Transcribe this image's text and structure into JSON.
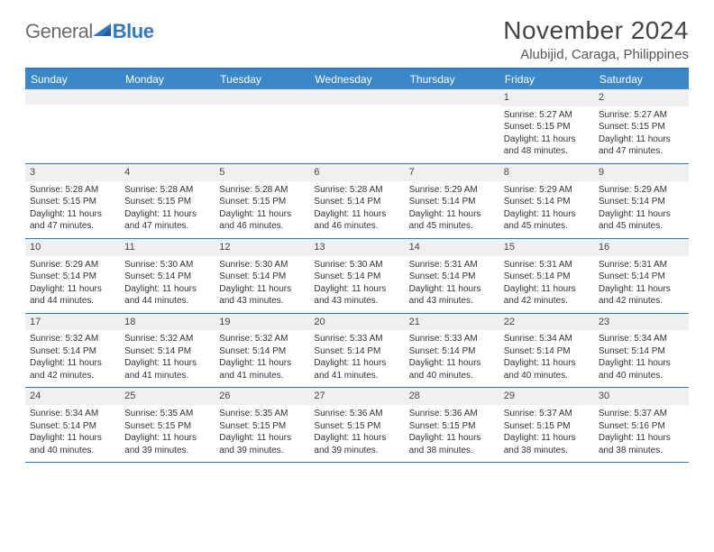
{
  "logo": {
    "text1": "General",
    "text2": "Blue"
  },
  "title": "November 2024",
  "location": "Alubijid, Caraga, Philippines",
  "colors": {
    "header_bg": "#3b87c8",
    "border": "#2f78bf",
    "daynum_bg": "#eef0f2",
    "text": "#333333",
    "logo_gray": "#6b6b6b",
    "logo_blue": "#2f78bf"
  },
  "day_names": [
    "Sunday",
    "Monday",
    "Tuesday",
    "Wednesday",
    "Thursday",
    "Friday",
    "Saturday"
  ],
  "weeks": [
    [
      {
        "n": "",
        "sr": "",
        "ss": "",
        "dl": ""
      },
      {
        "n": "",
        "sr": "",
        "ss": "",
        "dl": ""
      },
      {
        "n": "",
        "sr": "",
        "ss": "",
        "dl": ""
      },
      {
        "n": "",
        "sr": "",
        "ss": "",
        "dl": ""
      },
      {
        "n": "",
        "sr": "",
        "ss": "",
        "dl": ""
      },
      {
        "n": "1",
        "sr": "Sunrise: 5:27 AM",
        "ss": "Sunset: 5:15 PM",
        "dl": "Daylight: 11 hours and 48 minutes."
      },
      {
        "n": "2",
        "sr": "Sunrise: 5:27 AM",
        "ss": "Sunset: 5:15 PM",
        "dl": "Daylight: 11 hours and 47 minutes."
      }
    ],
    [
      {
        "n": "3",
        "sr": "Sunrise: 5:28 AM",
        "ss": "Sunset: 5:15 PM",
        "dl": "Daylight: 11 hours and 47 minutes."
      },
      {
        "n": "4",
        "sr": "Sunrise: 5:28 AM",
        "ss": "Sunset: 5:15 PM",
        "dl": "Daylight: 11 hours and 47 minutes."
      },
      {
        "n": "5",
        "sr": "Sunrise: 5:28 AM",
        "ss": "Sunset: 5:15 PM",
        "dl": "Daylight: 11 hours and 46 minutes."
      },
      {
        "n": "6",
        "sr": "Sunrise: 5:28 AM",
        "ss": "Sunset: 5:14 PM",
        "dl": "Daylight: 11 hours and 46 minutes."
      },
      {
        "n": "7",
        "sr": "Sunrise: 5:29 AM",
        "ss": "Sunset: 5:14 PM",
        "dl": "Daylight: 11 hours and 45 minutes."
      },
      {
        "n": "8",
        "sr": "Sunrise: 5:29 AM",
        "ss": "Sunset: 5:14 PM",
        "dl": "Daylight: 11 hours and 45 minutes."
      },
      {
        "n": "9",
        "sr": "Sunrise: 5:29 AM",
        "ss": "Sunset: 5:14 PM",
        "dl": "Daylight: 11 hours and 45 minutes."
      }
    ],
    [
      {
        "n": "10",
        "sr": "Sunrise: 5:29 AM",
        "ss": "Sunset: 5:14 PM",
        "dl": "Daylight: 11 hours and 44 minutes."
      },
      {
        "n": "11",
        "sr": "Sunrise: 5:30 AM",
        "ss": "Sunset: 5:14 PM",
        "dl": "Daylight: 11 hours and 44 minutes."
      },
      {
        "n": "12",
        "sr": "Sunrise: 5:30 AM",
        "ss": "Sunset: 5:14 PM",
        "dl": "Daylight: 11 hours and 43 minutes."
      },
      {
        "n": "13",
        "sr": "Sunrise: 5:30 AM",
        "ss": "Sunset: 5:14 PM",
        "dl": "Daylight: 11 hours and 43 minutes."
      },
      {
        "n": "14",
        "sr": "Sunrise: 5:31 AM",
        "ss": "Sunset: 5:14 PM",
        "dl": "Daylight: 11 hours and 43 minutes."
      },
      {
        "n": "15",
        "sr": "Sunrise: 5:31 AM",
        "ss": "Sunset: 5:14 PM",
        "dl": "Daylight: 11 hours and 42 minutes."
      },
      {
        "n": "16",
        "sr": "Sunrise: 5:31 AM",
        "ss": "Sunset: 5:14 PM",
        "dl": "Daylight: 11 hours and 42 minutes."
      }
    ],
    [
      {
        "n": "17",
        "sr": "Sunrise: 5:32 AM",
        "ss": "Sunset: 5:14 PM",
        "dl": "Daylight: 11 hours and 42 minutes."
      },
      {
        "n": "18",
        "sr": "Sunrise: 5:32 AM",
        "ss": "Sunset: 5:14 PM",
        "dl": "Daylight: 11 hours and 41 minutes."
      },
      {
        "n": "19",
        "sr": "Sunrise: 5:32 AM",
        "ss": "Sunset: 5:14 PM",
        "dl": "Daylight: 11 hours and 41 minutes."
      },
      {
        "n": "20",
        "sr": "Sunrise: 5:33 AM",
        "ss": "Sunset: 5:14 PM",
        "dl": "Daylight: 11 hours and 41 minutes."
      },
      {
        "n": "21",
        "sr": "Sunrise: 5:33 AM",
        "ss": "Sunset: 5:14 PM",
        "dl": "Daylight: 11 hours and 40 minutes."
      },
      {
        "n": "22",
        "sr": "Sunrise: 5:34 AM",
        "ss": "Sunset: 5:14 PM",
        "dl": "Daylight: 11 hours and 40 minutes."
      },
      {
        "n": "23",
        "sr": "Sunrise: 5:34 AM",
        "ss": "Sunset: 5:14 PM",
        "dl": "Daylight: 11 hours and 40 minutes."
      }
    ],
    [
      {
        "n": "24",
        "sr": "Sunrise: 5:34 AM",
        "ss": "Sunset: 5:14 PM",
        "dl": "Daylight: 11 hours and 40 minutes."
      },
      {
        "n": "25",
        "sr": "Sunrise: 5:35 AM",
        "ss": "Sunset: 5:15 PM",
        "dl": "Daylight: 11 hours and 39 minutes."
      },
      {
        "n": "26",
        "sr": "Sunrise: 5:35 AM",
        "ss": "Sunset: 5:15 PM",
        "dl": "Daylight: 11 hours and 39 minutes."
      },
      {
        "n": "27",
        "sr": "Sunrise: 5:36 AM",
        "ss": "Sunset: 5:15 PM",
        "dl": "Daylight: 11 hours and 39 minutes."
      },
      {
        "n": "28",
        "sr": "Sunrise: 5:36 AM",
        "ss": "Sunset: 5:15 PM",
        "dl": "Daylight: 11 hours and 38 minutes."
      },
      {
        "n": "29",
        "sr": "Sunrise: 5:37 AM",
        "ss": "Sunset: 5:15 PM",
        "dl": "Daylight: 11 hours and 38 minutes."
      },
      {
        "n": "30",
        "sr": "Sunrise: 5:37 AM",
        "ss": "Sunset: 5:16 PM",
        "dl": "Daylight: 11 hours and 38 minutes."
      }
    ]
  ]
}
